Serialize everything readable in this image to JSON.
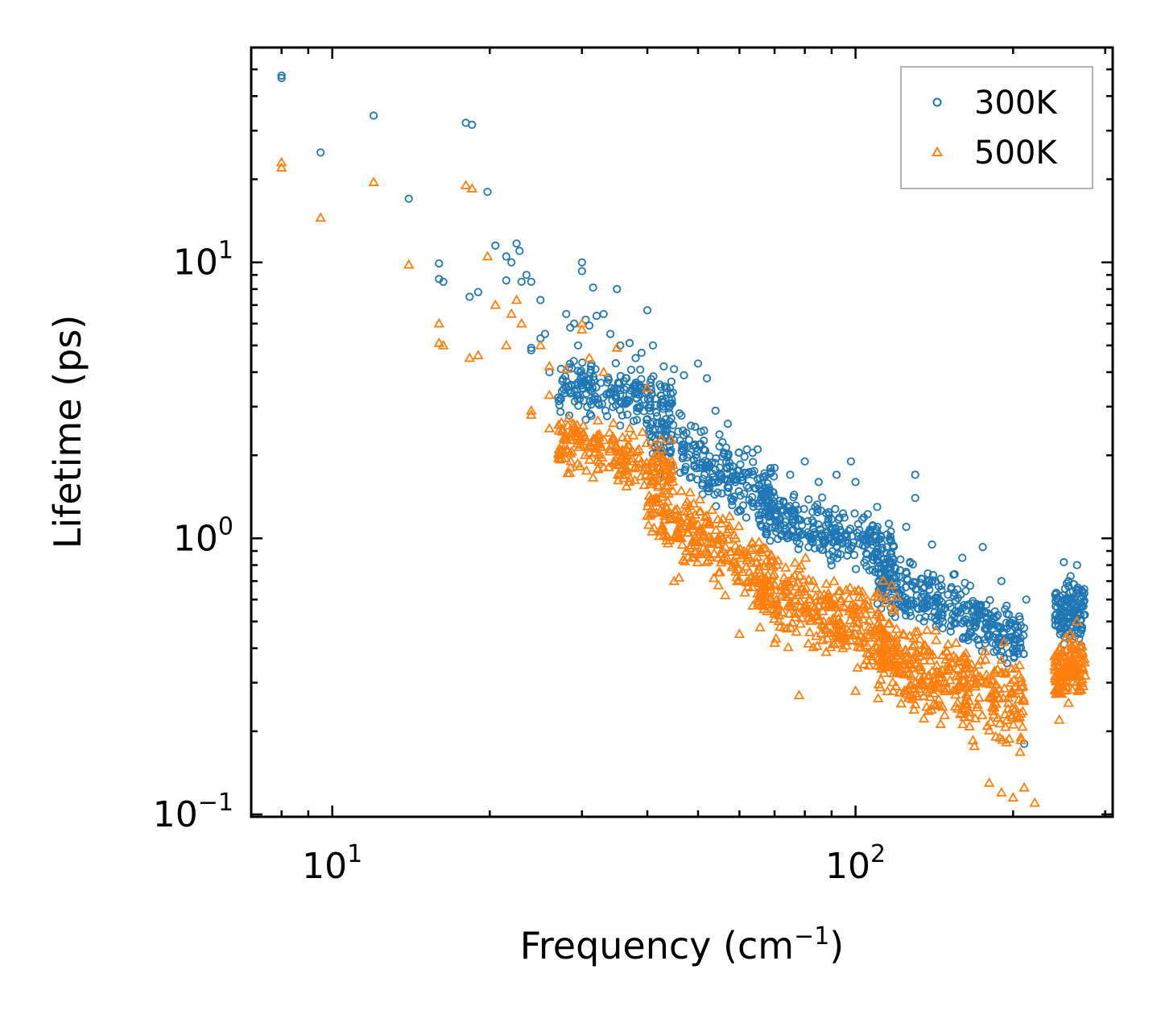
{
  "chart_data": {
    "type": "scatter",
    "xscale": "log",
    "yscale": "log",
    "xlabel": "Frequency (cm",
    "xlabel_sup": "−1",
    "xlabel_end": ")",
    "ylabel": "Lifetime (ps)",
    "xlim": [
      7.0,
      310.0
    ],
    "ylim": [
      0.098,
      60.0
    ],
    "x_ticks": [
      {
        "value": 10,
        "base": "10",
        "exp": "1"
      },
      {
        "value": 100,
        "base": "10",
        "exp": "2"
      }
    ],
    "y_ticks": [
      {
        "value": 0.1,
        "base": "10",
        "exp": "−1"
      },
      {
        "value": 1,
        "base": "10",
        "exp": "0"
      },
      {
        "value": 10,
        "base": "10",
        "exp": "1"
      }
    ],
    "legend_position": "top-right",
    "series": [
      {
        "name": "300K",
        "marker": "circle",
        "color": "#1f77b4",
        "points": [
          [
            8.0,
            47.5
          ],
          [
            8.0,
            46.5
          ],
          [
            9.5,
            25
          ],
          [
            12.0,
            34
          ],
          [
            14.0,
            17
          ],
          [
            16.0,
            9.9
          ],
          [
            16.0,
            8.7
          ],
          [
            16.3,
            8.5
          ],
          [
            18.0,
            32
          ],
          [
            18.5,
            31.5
          ],
          [
            18.3,
            7.5
          ],
          [
            19.0,
            7.8
          ],
          [
            19.8,
            18
          ],
          [
            20.5,
            11.5
          ],
          [
            21.5,
            10.5
          ],
          [
            22.0,
            10.0
          ],
          [
            22.5,
            11.7
          ],
          [
            22.8,
            11.0
          ],
          [
            23.0,
            8.5
          ],
          [
            23.5,
            9.0
          ],
          [
            24.0,
            8.5
          ],
          [
            21.5,
            8.6
          ],
          [
            25.0,
            7.3
          ],
          [
            25.0,
            5.3
          ],
          [
            25.5,
            5.5
          ],
          [
            26.0,
            4.0
          ],
          [
            24.0,
            4.8
          ],
          [
            24.0,
            4.9
          ],
          [
            28.0,
            6.5
          ],
          [
            28.5,
            5.8
          ],
          [
            29.0,
            6.0
          ],
          [
            29.5,
            5.0
          ],
          [
            30.0,
            10.0
          ],
          [
            30.0,
            9.3
          ],
          [
            30.5,
            6.2
          ],
          [
            31.0,
            5.9
          ],
          [
            31.5,
            8.1
          ],
          [
            32.0,
            6.4
          ],
          [
            33.0,
            6.5
          ],
          [
            34.0,
            5.5
          ],
          [
            35.0,
            8.0
          ],
          [
            35.5,
            5.0
          ],
          [
            37.0,
            5.1
          ],
          [
            38.0,
            4.5
          ],
          [
            39.0,
            4.7
          ],
          [
            40.0,
            6.7
          ],
          [
            41.0,
            5.0
          ],
          [
            43.0,
            4.2
          ],
          [
            45.0,
            4.1
          ],
          [
            47.0,
            3.9
          ],
          [
            50.0,
            4.3
          ],
          [
            52.0,
            3.8
          ],
          [
            54.0,
            2.9
          ],
          [
            57.0,
            2.6
          ],
          [
            62.0,
            2.1
          ],
          [
            65.0,
            2.1
          ],
          [
            70.0,
            1.8
          ],
          [
            75.0,
            1.7
          ],
          [
            80.0,
            1.9
          ],
          [
            85.0,
            1.6
          ],
          [
            92.0,
            1.7
          ],
          [
            98.0,
            1.9
          ],
          [
            100.0,
            1.6
          ],
          [
            110.0,
            1.3
          ],
          [
            125.0,
            1.1
          ],
          [
            130.0,
            1.7
          ],
          [
            130.0,
            1.4
          ],
          [
            140.0,
            0.95
          ],
          [
            160.0,
            0.85
          ],
          [
            175.0,
            0.93
          ],
          [
            190.0,
            0.7
          ],
          [
            210.0,
            0.18
          ],
          [
            212.0,
            0.6
          ],
          [
            250.0,
            0.82
          ],
          [
            265.0,
            0.8
          ]
        ],
        "bands": [
          {
            "x": [
              27,
              45
            ],
            "y": [
              [
                2.6,
                5.0
              ],
              [
                2.3,
                4.2
              ]
            ],
            "n": 220
          },
          {
            "x": [
              40,
              70
            ],
            "y": [
              [
                1.6,
                3.6
              ],
              [
                1.0,
                2.0
              ]
            ],
            "n": 260
          },
          {
            "x": [
              65,
              120
            ],
            "y": [
              [
                0.9,
                1.7
              ],
              [
                0.6,
                1.25
              ]
            ],
            "n": 320
          },
          {
            "x": [
              110,
              210
            ],
            "y": [
              [
                0.5,
                1.0
              ],
              [
                0.3,
                0.62
              ]
            ],
            "n": 360
          },
          {
            "x": [
              240,
              275
            ],
            "y": [
              [
                0.35,
                0.8
              ],
              [
                0.38,
                0.82
              ]
            ],
            "n": 140
          }
        ]
      },
      {
        "name": "500K",
        "marker": "triangle",
        "color": "#ff7f0e",
        "points": [
          [
            8.0,
            23
          ],
          [
            8.0,
            22
          ],
          [
            9.5,
            14.5
          ],
          [
            12.0,
            19.5
          ],
          [
            14.0,
            9.8
          ],
          [
            16.0,
            6.0
          ],
          [
            16.0,
            5.1
          ],
          [
            16.3,
            5.0
          ],
          [
            18.0,
            19
          ],
          [
            18.5,
            18.5
          ],
          [
            18.3,
            4.5
          ],
          [
            19.0,
            4.6
          ],
          [
            19.8,
            10.5
          ],
          [
            20.5,
            7.0
          ],
          [
            21.5,
            5.0
          ],
          [
            22.0,
            6.5
          ],
          [
            22.5,
            7.3
          ],
          [
            23.0,
            6.0
          ],
          [
            24.0,
            2.9
          ],
          [
            24.0,
            2.8
          ],
          [
            25.0,
            5.0
          ],
          [
            26.0,
            4.2
          ],
          [
            26.0,
            2.5
          ],
          [
            26.0,
            3.3
          ],
          [
            28.0,
            4.1
          ],
          [
            30.0,
            6.0
          ],
          [
            30.0,
            5.7
          ],
          [
            31.0,
            4.5
          ],
          [
            33.0,
            4.0
          ],
          [
            35.0,
            4.9
          ],
          [
            40.0,
            3.5
          ],
          [
            45.0,
            0.7
          ],
          [
            46.0,
            0.72
          ],
          [
            60.0,
            0.45
          ],
          [
            78.0,
            0.27
          ],
          [
            100.0,
            0.28
          ],
          [
            130.0,
            0.25
          ],
          [
            180.0,
            0.13
          ],
          [
            190.0,
            0.12
          ],
          [
            200.0,
            0.115
          ],
          [
            210.0,
            0.125
          ],
          [
            220.0,
            0.11
          ],
          [
            245.0,
            0.22
          ],
          [
            265.0,
            0.5
          ]
        ],
        "bands": [
          {
            "x": [
              27,
              45
            ],
            "y": [
              [
                1.6,
                3.2
              ],
              [
                1.3,
                2.4
              ]
            ],
            "n": 220
          },
          {
            "x": [
              40,
              70
            ],
            "y": [
              [
                0.9,
                2.0
              ],
              [
                0.45,
                1.1
              ]
            ],
            "n": 260
          },
          {
            "x": [
              65,
              120
            ],
            "y": [
              [
                0.4,
                1.0
              ],
              [
                0.26,
                0.75
              ]
            ],
            "n": 320
          },
          {
            "x": [
              110,
              210
            ],
            "y": [
              [
                0.22,
                0.6
              ],
              [
                0.14,
                0.45
              ]
            ],
            "n": 360
          },
          {
            "x": [
              240,
              275
            ],
            "y": [
              [
                0.22,
                0.45
              ],
              [
                0.26,
                0.5
              ]
            ],
            "n": 140
          }
        ]
      }
    ]
  }
}
